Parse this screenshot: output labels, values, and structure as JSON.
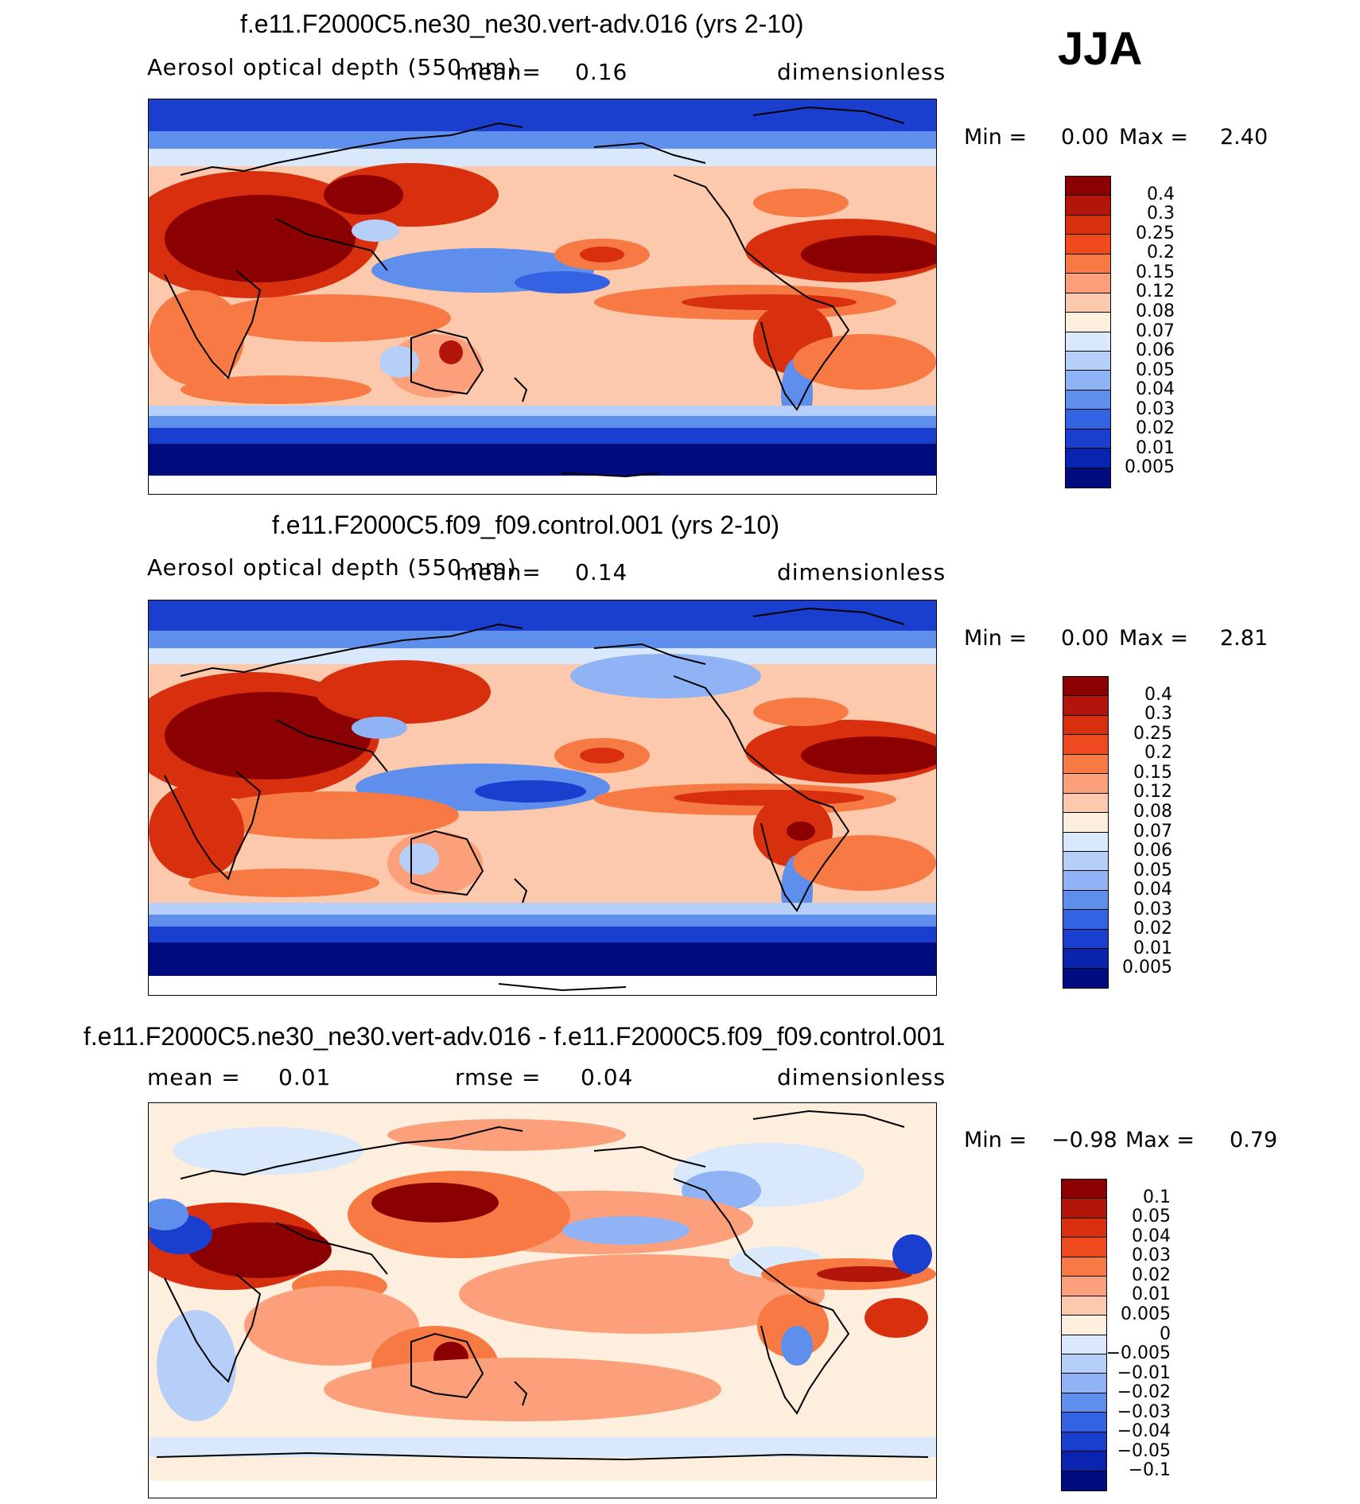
{
  "season": "JJA",
  "panels": [
    {
      "title": "f.e11.F2000C5.ne30_ne30.vert-adv.016 (yrs 2-10)",
      "variable": "Aerosol optical depth (550 nm)",
      "mean_label": "mean=",
      "mean_value": "0.16",
      "units": "dimensionless",
      "min_label": "Min =",
      "min_value": "0.00",
      "max_label": "Max =",
      "max_value": "2.40",
      "levels": [
        "0.4",
        "0.3",
        "0.25",
        "0.2",
        "0.15",
        "0.12",
        "0.08",
        "0.07",
        "0.06",
        "0.05",
        "0.04",
        "0.03",
        "0.02",
        "0.01",
        "0.005"
      ],
      "colors": [
        "#8b0000",
        "#b3150a",
        "#d8300f",
        "#ee4a1d",
        "#f77a45",
        "#fba07a",
        "#fdc9ac",
        "#feeedd",
        "#d9e9fb",
        "#b6cff8",
        "#8fb3f4",
        "#5f8fed",
        "#3362e2",
        "#1a3fcf",
        "#0b24b0",
        "#000c80"
      ]
    },
    {
      "title": "f.e11.F2000C5.f09_f09.control.001 (yrs 2-10)",
      "variable": "Aerosol optical depth (550 nm)",
      "mean_label": "mean=",
      "mean_value": "0.14",
      "units": "dimensionless",
      "min_label": "Min =",
      "min_value": "0.00",
      "max_label": "Max =",
      "max_value": "2.81",
      "levels": [
        "0.4",
        "0.3",
        "0.25",
        "0.2",
        "0.15",
        "0.12",
        "0.08",
        "0.07",
        "0.06",
        "0.05",
        "0.04",
        "0.03",
        "0.02",
        "0.01",
        "0.005"
      ],
      "colors": [
        "#8b0000",
        "#b3150a",
        "#d8300f",
        "#ee4a1d",
        "#f77a45",
        "#fba07a",
        "#fdc9ac",
        "#feeedd",
        "#d9e9fb",
        "#b6cff8",
        "#8fb3f4",
        "#5f8fed",
        "#3362e2",
        "#1a3fcf",
        "#0b24b0",
        "#000c80"
      ]
    },
    {
      "title": "f.e11.F2000C5.ne30_ne30.vert-adv.016 - f.e11.F2000C5.f09_f09.control.001",
      "mean_label": "mean =",
      "mean_value": "0.01",
      "rmse_label": "rmse =",
      "rmse_value": "0.04",
      "units": "dimensionless",
      "min_label": "Min =",
      "min_value": "−0.98",
      "max_label": "Max =",
      "max_value": "0.79",
      "levels": [
        "0.1",
        "0.05",
        "0.04",
        "0.03",
        "0.02",
        "0.01",
        "0.005",
        "0",
        "−0.005",
        "−0.01",
        "−0.02",
        "−0.03",
        "−0.04",
        "−0.05",
        "−0.1"
      ],
      "colors": [
        "#8b0000",
        "#b3150a",
        "#d8300f",
        "#ee4a1d",
        "#f77a45",
        "#fba07a",
        "#fdc9ac",
        "#feeedd",
        "#d9e9fb",
        "#b6cff8",
        "#8fb3f4",
        "#5f8fed",
        "#3362e2",
        "#1a3fcf",
        "#0b24b0",
        "#000c80"
      ]
    }
  ]
}
